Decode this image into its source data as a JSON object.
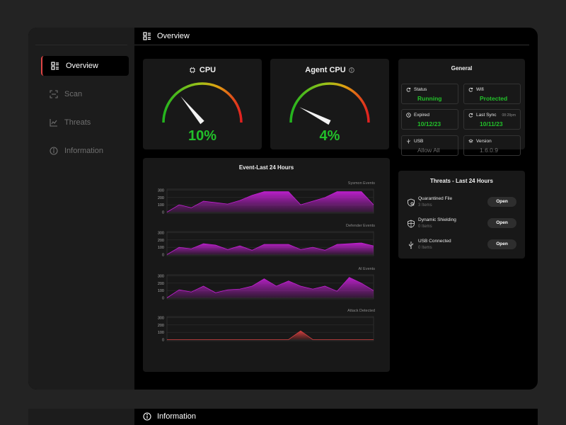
{
  "sidebar": {
    "items": [
      {
        "label": "Overview",
        "icon": "grid-icon",
        "active": true
      },
      {
        "label": "Scan",
        "icon": "scan-icon",
        "active": false
      },
      {
        "label": "Threats",
        "icon": "chart-icon",
        "active": false
      },
      {
        "label": "Information",
        "icon": "info-icon",
        "active": false
      }
    ]
  },
  "header": {
    "title": "Overview"
  },
  "cpu": {
    "title": "CPU",
    "value": "10%",
    "percent": 10
  },
  "agent_cpu": {
    "title": "Agent CPU",
    "value": "4%",
    "percent": 4
  },
  "general": {
    "title": "General",
    "status": {
      "label": "Status",
      "value": "Running"
    },
    "wifi": {
      "label": "Wifi",
      "value": "Protected"
    },
    "expired": {
      "label": "Expired",
      "value": "10/12/23"
    },
    "last_sync": {
      "label": "Last Sync",
      "time": "08:28pm",
      "value": "10/11/23"
    },
    "usb": {
      "label": "USB",
      "value": "Allow All"
    },
    "version": {
      "label": "Version",
      "value": "1.6.0.9"
    }
  },
  "threats": {
    "title": "Threats - Last 24 Hours",
    "items": [
      {
        "name": "Quarantined File",
        "count": "3 Items",
        "action": "Open"
      },
      {
        "name": "Dynamic Shielding",
        "count": "0 Items",
        "action": "Open"
      },
      {
        "name": "USB Connected",
        "count": "0 Items",
        "action": "Open"
      }
    ]
  },
  "events": {
    "title": "Event-Last 24 Hours"
  },
  "chart_data": [
    {
      "type": "area",
      "title": "Sysmon Events",
      "ylim": [
        0,
        300
      ],
      "yticks": [
        "300",
        "200",
        "100",
        "0"
      ],
      "color": "#c020d0",
      "values": [
        0,
        100,
        60,
        150,
        130,
        110,
        160,
        230,
        280,
        280,
        280,
        100,
        150,
        200,
        280,
        280,
        280,
        100
      ]
    },
    {
      "type": "area",
      "title": "Defender Events",
      "ylim": [
        0,
        300
      ],
      "yticks": [
        "300",
        "200",
        "100",
        "0"
      ],
      "color": "#c020d0",
      "values": [
        0,
        100,
        80,
        150,
        130,
        70,
        120,
        60,
        140,
        140,
        140,
        70,
        100,
        60,
        140,
        150,
        160,
        120
      ]
    },
    {
      "type": "area",
      "title": "AI Events",
      "ylim": [
        0,
        300
      ],
      "yticks": [
        "300",
        "200",
        "100",
        "0"
      ],
      "color": "#c020d0",
      "values": [
        0,
        110,
        80,
        160,
        70,
        110,
        120,
        160,
        260,
        160,
        230,
        160,
        120,
        160,
        90,
        280,
        200,
        100
      ]
    },
    {
      "type": "area",
      "title": "Attack Detected",
      "ylim": [
        0,
        300
      ],
      "yticks": [
        "300",
        "200",
        "100",
        "0"
      ],
      "color": "#d94040",
      "values": [
        0,
        0,
        0,
        0,
        0,
        0,
        0,
        0,
        0,
        0,
        0,
        120,
        0,
        0,
        0,
        0,
        0,
        0
      ]
    }
  ],
  "bottom": {
    "title": "Information"
  }
}
